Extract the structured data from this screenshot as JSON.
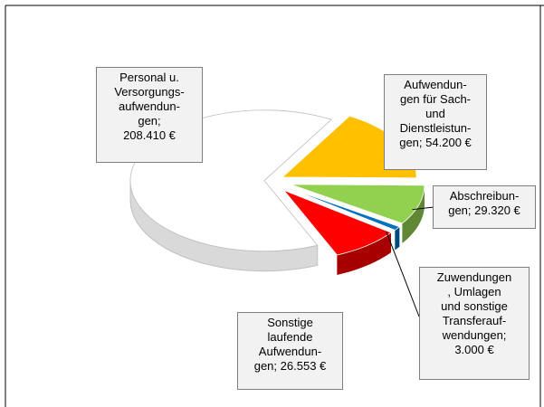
{
  "chart_data": {
    "type": "pie",
    "categories": [
      "Personal u.\nVersorgungs-\naufwendun-\ngen;",
      "Aufwendun-\ngen für Sach-\nund\nDienstleistun-\ngen;",
      "Abschreibun-\ngen;",
      "Zuwendungen\n, Umlagen\nund sonstige\nTransferauf-\nwendungen;",
      "Sonstige\nlaufende\nAufwendun-\ngen;"
    ],
    "values": [
      208410,
      54200,
      29320,
      3000,
      26553
    ],
    "value_labels": [
      "208.410 €",
      "54.200 €",
      "29.320 €",
      "3.000 €",
      "26.553 €"
    ],
    "colors": [
      "#ffffff",
      "#ffc000",
      "#92d050",
      "#0070c0",
      "#ff0000"
    ]
  }
}
